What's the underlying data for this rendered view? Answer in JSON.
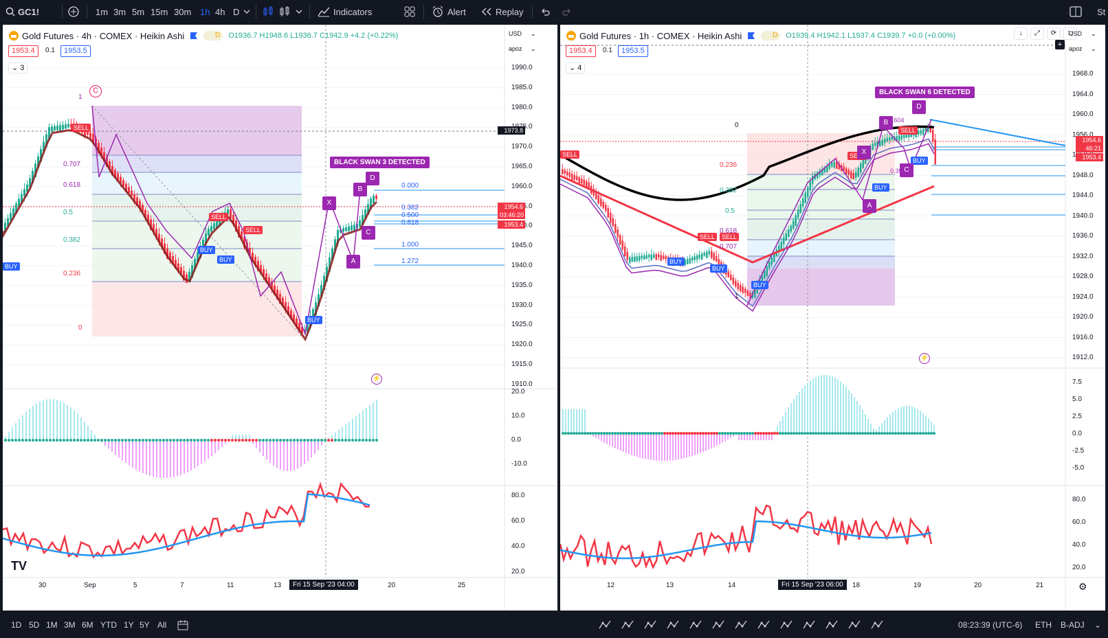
{
  "topbar": {
    "symbol": "GC1!",
    "timeframes": [
      "1m",
      "3m",
      "5m",
      "15m",
      "30m",
      "1h",
      "4h",
      "D"
    ],
    "active_timeframe": "1h",
    "indicators_label": "Indicators",
    "alert_label": "Alert",
    "replay_label": "Replay",
    "right_text": "St"
  },
  "left": {
    "title": "Gold Futures · 4h · COMEX · Heikin Ashi",
    "session": "D",
    "ohlc": "O1936.7 H1948.6 L1936.7 C1942.9 +4.2 (+0.22%)",
    "bid": "1953.4",
    "spread": "0.1",
    "ask": "1953.5",
    "collapse_count": "3",
    "currency": "USD",
    "scale": "apoz",
    "price_ticks": [
      "1990.0",
      "1985.0",
      "1980.0",
      "1975.0",
      "1970.0",
      "1965.0",
      "1960.0",
      "1955.0",
      "1950.0",
      "1945.0",
      "1940.0",
      "1935.0",
      "1930.0",
      "1925.0",
      "1920.0",
      "1915.0",
      "1910.0"
    ],
    "hl_price": "1973.8",
    "last_price": "1954.6",
    "countdown": "03:46:20",
    "bid_tag": "1953.4",
    "fib_left": [
      "1",
      "0.707",
      "0.618",
      "0.5",
      "0.382",
      "0.236",
      "0"
    ],
    "fib_right": [
      "0.000",
      "0.382",
      "0.500",
      "0.618",
      "1.000",
      "1.272"
    ],
    "black_swan": "BLACK SWAN 3 DETECTED",
    "pattern_points": [
      "X",
      "A",
      "B",
      "C",
      "D"
    ],
    "signals": {
      "sell": "SELL",
      "buy": "BUY"
    },
    "circle_label": "C",
    "macd_ticks": [
      "20.0",
      "10.0",
      "0.0",
      "-10.0"
    ],
    "rsi_ticks": [
      "80.0",
      "60.0",
      "40.0",
      "20.0"
    ],
    "x_labels": [
      "30",
      "Sep",
      "5",
      "7",
      "11",
      "13",
      "20",
      "25"
    ],
    "crosshair_time": "Fri 15 Sep '23  04:00"
  },
  "right": {
    "title": "Gold Futures · 1h · COMEX · Heikin Ashi",
    "session": "D",
    "ohlc": "O1939.4 H1942.1 L1937.4 C1939.7 +0.0 (+0.00%)",
    "bid": "1953.4",
    "spread": "0.1",
    "ask": "1953.5",
    "collapse_count": "4",
    "currency": "USD",
    "scale": "apoz",
    "price_ticks": [
      "1968.0",
      "1964.0",
      "1960.0",
      "1956.0",
      "1952.0",
      "1948.0",
      "1944.0",
      "1940.0",
      "1936.0",
      "1932.0",
      "1928.0",
      "1924.0",
      "1920.0",
      "1916.0",
      "1912.0"
    ],
    "last_price": "1954.6",
    "countdown": "46:21",
    "bid_tag": "1953.4",
    "fib_labels": [
      "0",
      "0.236",
      "0.382",
      "0.5",
      "0.618",
      "0.707",
      "1"
    ],
    "black_swan": "BLACK SWAN 6 DETECTED",
    "ratio_b": "1.604",
    "ratio_c": "0.393",
    "signals": {
      "sell": "SELL",
      "buy": "BUY"
    },
    "macd_ticks": [
      "7.5",
      "5.0",
      "2.5",
      "0.0",
      "-2.5",
      "-5.0"
    ],
    "rsi_ticks": [
      "80.0",
      "60.0",
      "40.0",
      "20.0"
    ],
    "x_labels": [
      "12",
      "13",
      "14",
      "18",
      "19",
      "20",
      "21"
    ],
    "crosshair_time": "Fri 15 Sep '23  06:00"
  },
  "bottombar": {
    "ranges": [
      "1D",
      "5D",
      "1M",
      "3M",
      "6M",
      "YTD",
      "1Y",
      "5Y",
      "All"
    ],
    "time": "08:23:39 (UTC-6)",
    "session": "ETH",
    "adjust": "B-ADJ"
  },
  "colors": {
    "up": "#22ab94",
    "down": "#f23645",
    "accent": "#2962ff",
    "purple": "#9c27b0",
    "cyan": "#4dd0e1",
    "magenta": "#e040fb"
  }
}
